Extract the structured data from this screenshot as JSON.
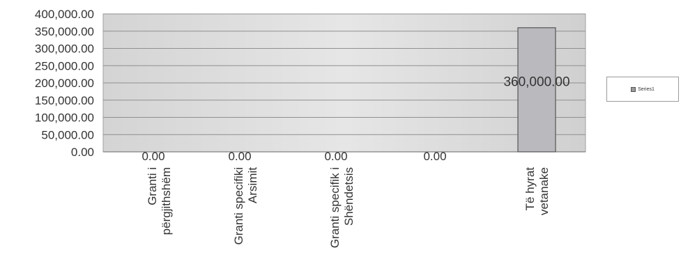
{
  "chart_data": {
    "type": "bar",
    "categories": [
      [
        "Granti i",
        "përgjithshëm"
      ],
      [
        "Granti specifiki",
        "Arsimit"
      ],
      [
        "Granti specifik i",
        "Shëndetsis"
      ],
      [
        ""
      ],
      [
        "Të hyrat",
        "vetanake"
      ]
    ],
    "values": [
      0,
      0,
      0,
      0,
      360000
    ],
    "data_labels": [
      "0.00",
      "0.00",
      "0.00",
      "0.00",
      "360,000.00"
    ],
    "series": [
      {
        "name": "Series1",
        "values": [
          0,
          0,
          0,
          0,
          360000
        ]
      }
    ],
    "title": "",
    "xlabel": "",
    "ylabel": "",
    "ylim": [
      0,
      400000
    ],
    "yticks": [
      "0.00",
      "50,000.00",
      "100,000.00",
      "150,000.00",
      "200,000.00",
      "250,000.00",
      "300,000.00",
      "350,000.00",
      "400,000.00"
    ],
    "grid": true,
    "legend_position": "right",
    "colors": {
      "plot_bg": "#e0e0e0",
      "bar": "#b9b9be",
      "bar_edge": "#555555",
      "grid": "#8f8f8f",
      "text": "#333333"
    }
  }
}
